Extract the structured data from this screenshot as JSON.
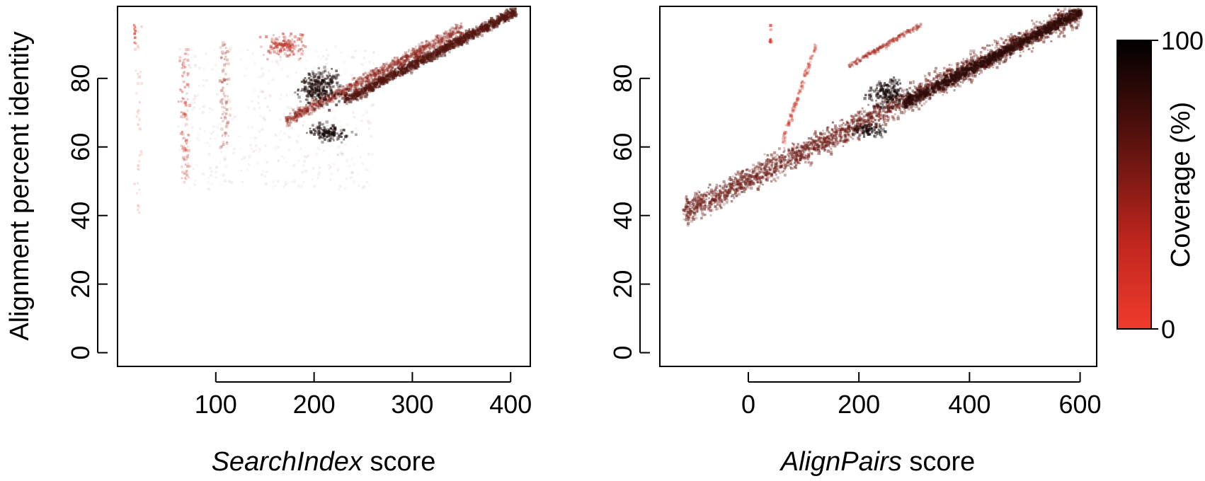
{
  "chart_data": [
    {
      "type": "scatter",
      "panel": "left",
      "title": "",
      "xlabel": {
        "italic": "SearchIndex",
        "plain": " score"
      },
      "ylabel": "Alignment percent identity",
      "xlim": [
        0,
        420
      ],
      "ylim": [
        -4,
        101
      ],
      "xticks": [
        100,
        200,
        300,
        400
      ],
      "yticks": [
        0,
        20,
        40,
        60,
        80
      ],
      "color_encoding": "coverage",
      "clusters": [
        {
          "x": [
            230,
            405
          ],
          "y": [
            74,
            100
          ],
          "coverage": 65,
          "density": 0.9,
          "shape": "band"
        },
        {
          "x": [
            170,
            350
          ],
          "y": [
            68,
            95
          ],
          "coverage": 40,
          "density": 0.55,
          "shape": "band"
        },
        {
          "x": [
            175,
            235
          ],
          "y": [
            70,
            85
          ],
          "coverage": 90,
          "density": 0.9,
          "shape": "blob"
        },
        {
          "x": [
            180,
            245
          ],
          "y": [
            61,
            68
          ],
          "coverage": 92,
          "density": 0.9,
          "shape": "blob"
        },
        {
          "x": [
            140,
            200
          ],
          "y": [
            85,
            95
          ],
          "coverage": 20,
          "density": 0.7,
          "shape": "blob"
        },
        {
          "x": [
            60,
            75
          ],
          "y": [
            50,
            89
          ],
          "coverage": 15,
          "density": 0.5,
          "shape": "column"
        },
        {
          "x": [
            100,
            115
          ],
          "y": [
            60,
            93
          ],
          "coverage": 35,
          "density": 0.45,
          "shape": "column"
        },
        {
          "x": [
            15,
            25
          ],
          "y": [
            41,
            96
          ],
          "coverage": 10,
          "density": 0.2,
          "shape": "column"
        },
        {
          "x": [
            15,
            18
          ],
          "y": [
            90,
            96
          ],
          "coverage": 5,
          "density": 1,
          "shape": "column"
        },
        {
          "x": [
            60,
            260
          ],
          "y": [
            48,
            90
          ],
          "coverage": 55,
          "density": 0.15,
          "shape": "haze"
        }
      ]
    },
    {
      "type": "scatter",
      "panel": "right",
      "title": "",
      "xlabel": {
        "italic": "AlignPairs",
        "plain": " score"
      },
      "ylabel": "",
      "xlim": [
        -160,
        630
      ],
      "ylim": [
        -4,
        101
      ],
      "xticks": [
        0,
        200,
        400,
        600
      ],
      "yticks": [
        0,
        20,
        40,
        60,
        80
      ],
      "color_encoding": "coverage",
      "clusters": [
        {
          "x": [
            -120,
            600
          ],
          "y": [
            41,
            100
          ],
          "coverage": 55,
          "density": 0.75,
          "shape": "band"
        },
        {
          "x": [
            280,
            600
          ],
          "y": [
            73,
            100
          ],
          "coverage": 80,
          "density": 0.9,
          "shape": "band"
        },
        {
          "x": [
            200,
            300
          ],
          "y": [
            70,
            82
          ],
          "coverage": 92,
          "density": 0.9,
          "shape": "blob"
        },
        {
          "x": [
            170,
            260
          ],
          "y": [
            62,
            68
          ],
          "coverage": 94,
          "density": 0.9,
          "shape": "blob"
        },
        {
          "x": [
            180,
            310
          ],
          "y": [
            84,
            96
          ],
          "coverage": 30,
          "density": 0.6,
          "shape": "band"
        },
        {
          "x": [
            60,
            120
          ],
          "y": [
            62,
            90
          ],
          "coverage": 15,
          "density": 0.45,
          "shape": "band"
        },
        {
          "x": [
            36,
            40
          ],
          "y": [
            90,
            96
          ],
          "coverage": 5,
          "density": 1,
          "shape": "column"
        }
      ]
    }
  ],
  "colorbar": {
    "label": "Coverage (%)",
    "min_label": "0",
    "max_label": "100",
    "low_color": "#ef3b2c",
    "high_color": "#000000"
  }
}
